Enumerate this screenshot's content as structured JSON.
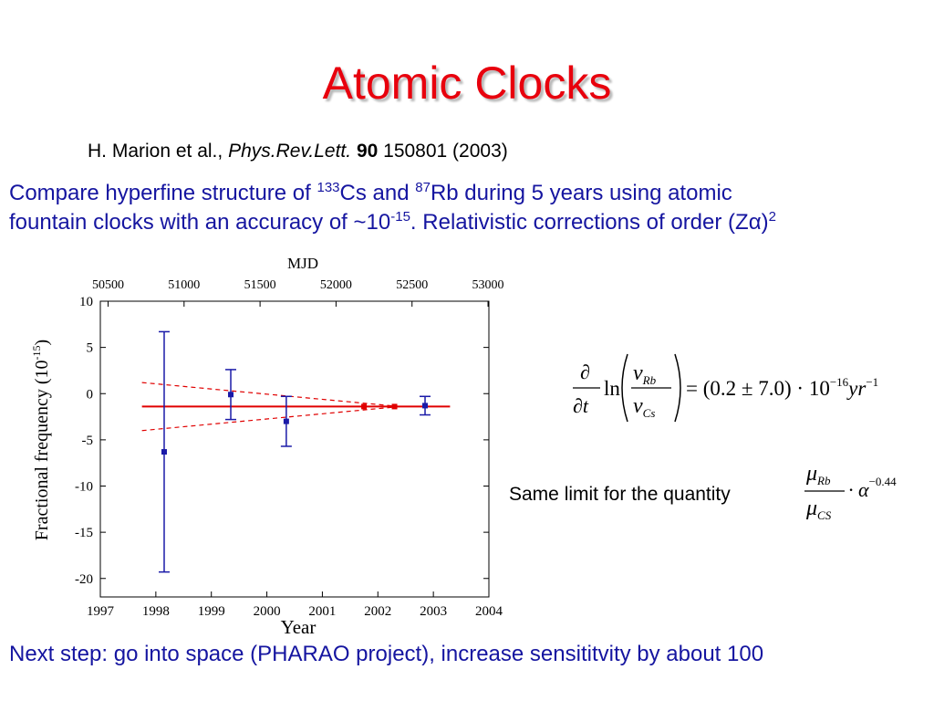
{
  "title": "Atomic Clocks",
  "reference": {
    "authors": "H. Marion et al.,",
    "journal": "Phys.Rev.Lett.",
    "volume": "90",
    "rest": "150801 (2003)"
  },
  "intro": {
    "line1_a": "Compare hyperfine structure of ",
    "sup1": "133",
    "line1_b": "Cs and ",
    "sup2": "87",
    "line1_c": "Rb during 5 years using atomic",
    "line2_a": "fountain clocks with an accuracy of ~10",
    "sup3": "-15",
    "line2_b": ". Relativistic corrections of order (Zα)",
    "sup4": "2"
  },
  "same_limit_text": "Same limit for the quantity",
  "formula1": {
    "partial": "∂",
    "dt": "∂t",
    "ln": "ln",
    "nu": "ν",
    "rb": "Rb",
    "cs": "Cs",
    "rhs": "= (0.2 ± 7.0) · 10",
    "exp": "−16",
    "yr": "yr",
    "yr_exp": "−1"
  },
  "formula2": {
    "mu": "μ",
    "rb": "Rb",
    "cs": "CS",
    "dot_alpha": "· α",
    "exp": "−0.44"
  },
  "next_step": "Next step: go into space (PHARAO project), increase sensititvity by about 100",
  "chart_data": {
    "type": "scatter",
    "top_axis_label": "MJD",
    "xlabel": "Year",
    "ylabel": "Fractional frequency (10",
    "ylabel_exp": "-15",
    "ylabel_end": ")",
    "xlim": [
      1997,
      2004
    ],
    "ylim": [
      -22,
      10
    ],
    "x_ticks": [
      1997,
      1998,
      1999,
      2000,
      2001,
      2002,
      2003,
      2004
    ],
    "y_ticks": [
      10,
      5,
      0,
      -5,
      -10,
      -15,
      -20
    ],
    "y_tick_labels": [
      "10",
      "5",
      "0",
      "-5",
      "-10",
      "-15",
      "-20"
    ],
    "mjd_ticks": [
      50500,
      51000,
      51500,
      52000,
      52500,
      53000
    ],
    "mjd_at_1997": 50449,
    "series": [
      {
        "x": [
          1998.15,
          1999.35,
          2000.35,
          2002.85
        ],
        "y": [
          -6.3,
          -0.1,
          -3.0,
          -1.3
        ],
        "err": [
          13,
          2.7,
          2.7,
          1.0
        ],
        "color": "#1a1aa8"
      },
      {
        "x": [
          2001.75,
          2002.3
        ],
        "y": [
          -1.4,
          -1.4
        ],
        "color": "#e00000"
      }
    ],
    "fit": {
      "x": [
        1997.75,
        2003.3
      ],
      "y": -1.4,
      "color": "#e00000"
    },
    "confidence_band": {
      "x": [
        1997.75,
        2002.4,
        2003.3
      ],
      "upper": [
        1.2,
        -1.4,
        -1.4
      ],
      "lower": [
        -4.0,
        -1.4,
        -1.4
      ]
    }
  }
}
